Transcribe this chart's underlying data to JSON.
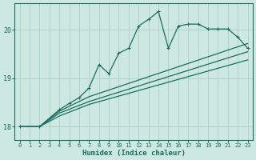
{
  "xlabel": "Humidex (Indice chaleur)",
  "bg_color": "#cce8e0",
  "grid_color": "#aad0c8",
  "line_color": "#1a6e5e",
  "xlim": [
    -0.5,
    23.5
  ],
  "ylim": [
    17.72,
    20.55
  ],
  "yticks": [
    18,
    19,
    20
  ],
  "xticks": [
    0,
    1,
    2,
    3,
    4,
    5,
    6,
    7,
    8,
    9,
    10,
    11,
    12,
    13,
    14,
    15,
    16,
    17,
    18,
    19,
    20,
    21,
    22,
    23
  ],
  "lines": [
    {
      "x": [
        0,
        2,
        4,
        5,
        6,
        7,
        8,
        9,
        10,
        11,
        12,
        13,
        14,
        15,
        16,
        17,
        18,
        19,
        20,
        21,
        22,
        23
      ],
      "y": [
        18.0,
        18.0,
        18.35,
        18.48,
        18.6,
        18.8,
        19.28,
        19.1,
        19.52,
        19.62,
        20.08,
        20.22,
        20.38,
        19.62,
        20.08,
        20.12,
        20.12,
        20.02,
        20.02,
        20.02,
        19.85,
        19.62
      ],
      "has_markers": true
    },
    {
      "x": [
        0,
        2,
        4,
        5,
        6,
        7,
        23
      ],
      "y": [
        18.0,
        18.0,
        18.32,
        18.42,
        18.52,
        18.62,
        19.72
      ],
      "has_markers": false
    },
    {
      "x": [
        0,
        2,
        4,
        5,
        6,
        7,
        23
      ],
      "y": [
        18.0,
        18.0,
        18.28,
        18.36,
        18.44,
        18.52,
        19.55
      ],
      "has_markers": false
    },
    {
      "x": [
        0,
        2,
        4,
        5,
        6,
        7,
        23
      ],
      "y": [
        18.0,
        18.0,
        18.22,
        18.3,
        18.38,
        18.46,
        19.38
      ],
      "has_markers": false
    }
  ]
}
